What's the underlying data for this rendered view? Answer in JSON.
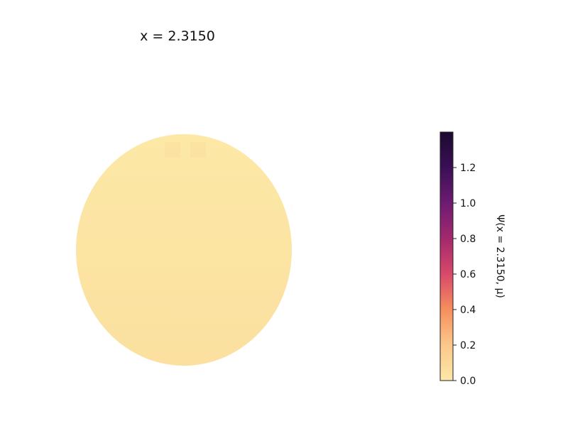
{
  "chart_data": {
    "type": "heatmap",
    "title": "x = 2.3150",
    "colormap": "magma_r",
    "colorbar": {
      "label": "Ψ(x = 2.3150, μ)",
      "range": [
        0.0,
        1.4
      ],
      "ticks": [
        0.0,
        0.2,
        0.4,
        0.6,
        0.8,
        1.0,
        1.2
      ],
      "tick_labels": [
        "0.0",
        "0.2",
        "0.4",
        "0.6",
        "0.8",
        "1.0",
        "1.2"
      ],
      "stops": [
        "#fde8a8",
        "#fcc88a",
        "#f68f5d",
        "#d9486a",
        "#a3296d",
        "#6e1b73",
        "#3a0f55",
        "#1c0a30"
      ]
    },
    "field": {
      "shape": "disk",
      "approx_value": 0.02,
      "fill_color": "#fde8a6",
      "shade_color": "#fbe0a0"
    }
  }
}
